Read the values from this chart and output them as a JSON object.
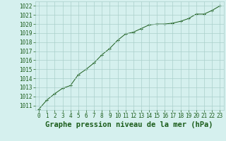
{
  "x": [
    0,
    1,
    2,
    3,
    4,
    5,
    6,
    7,
    8,
    9,
    10,
    11,
    12,
    13,
    14,
    15,
    16,
    17,
    18,
    19,
    20,
    21,
    22,
    23
  ],
  "y": [
    1010.6,
    1011.6,
    1012.3,
    1012.9,
    1013.2,
    1014.4,
    1015.0,
    1015.7,
    1016.6,
    1017.3,
    1018.2,
    1018.9,
    1019.1,
    1019.5,
    1019.9,
    1020.0,
    1020.0,
    1020.1,
    1020.3,
    1020.6,
    1021.1,
    1021.1,
    1021.5,
    1022.0
  ],
  "xlim": [
    -0.5,
    23.5
  ],
  "ylim": [
    1010.5,
    1022.5
  ],
  "yticks": [
    1011,
    1012,
    1013,
    1014,
    1015,
    1016,
    1017,
    1018,
    1019,
    1020,
    1021,
    1022
  ],
  "xticks": [
    0,
    1,
    2,
    3,
    4,
    5,
    6,
    7,
    8,
    9,
    10,
    11,
    12,
    13,
    14,
    15,
    16,
    17,
    18,
    19,
    20,
    21,
    22,
    23
  ],
  "xlabel": "Graphe pression niveau de la mer (hPa)",
  "line_color": "#1a5c1a",
  "marker_color": "#1a5c1a",
  "bg_color": "#d5f0ee",
  "plot_bg_color": "#d5f0ee",
  "grid_color": "#aacfcb",
  "tick_label_color": "#1a5c1a",
  "xlabel_color": "#1a5c1a",
  "tick_fontsize": 5.5,
  "xlabel_fontsize": 7.5
}
